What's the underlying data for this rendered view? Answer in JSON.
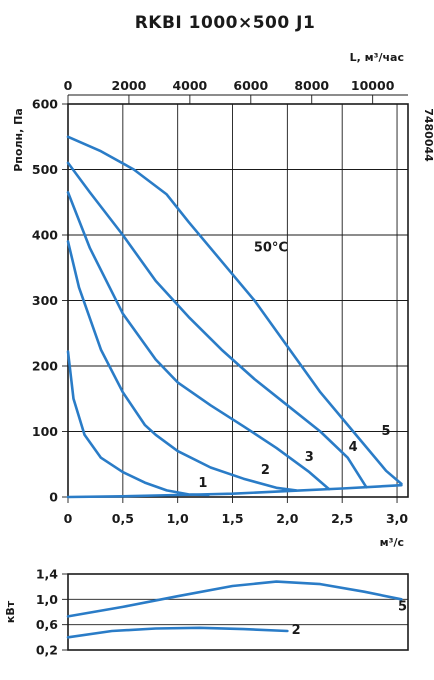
{
  "chart_data": [
    {
      "type": "line",
      "title": "RKBI 1000×500 J1",
      "code": "7480044",
      "ylabel": "Pполн, Па",
      "xlabel_bottom": "м³/с",
      "xlabel_top": "L, м³/час",
      "xlim": [
        0,
        3.1
      ],
      "ylim": [
        0,
        600
      ],
      "x_ticks": [
        0,
        0.5,
        1.0,
        1.5,
        2.0,
        2.5,
        3.0
      ],
      "x_tick_labels": [
        "0",
        "0,5",
        "1,0",
        "1,5",
        "2,0",
        "2,5",
        "3,0"
      ],
      "y_ticks": [
        0,
        100,
        200,
        300,
        400,
        500,
        600
      ],
      "y_tick_labels": [
        "0",
        "100",
        "200",
        "300",
        "400",
        "500",
        "600"
      ],
      "top_ticks": [
        0,
        2000,
        4000,
        6000,
        8000,
        10000
      ],
      "top_tick_labels": [
        "0",
        "2000",
        "4000",
        "6000",
        "8000",
        "10000"
      ],
      "annotation": "50°C",
      "series": [
        {
          "name": "1",
          "x": [
            0.0,
            0.05,
            0.15,
            0.3,
            0.5,
            0.7,
            0.9,
            1.1,
            1.28
          ],
          "y": [
            222,
            150,
            95,
            60,
            38,
            22,
            10,
            4,
            3
          ]
        },
        {
          "name": "2",
          "x": [
            0.0,
            0.1,
            0.3,
            0.5,
            0.7,
            0.8,
            1.0,
            1.3,
            1.6,
            1.9,
            2.08
          ],
          "y": [
            390,
            320,
            225,
            160,
            110,
            95,
            70,
            45,
            28,
            14,
            10
          ]
        },
        {
          "name": "3",
          "x": [
            0.0,
            0.2,
            0.5,
            0.8,
            1.0,
            1.3,
            1.6,
            1.9,
            2.2,
            2.38
          ],
          "y": [
            465,
            380,
            280,
            210,
            175,
            140,
            108,
            75,
            38,
            12
          ]
        },
        {
          "name": "4",
          "x": [
            0.0,
            0.2,
            0.5,
            0.8,
            1.1,
            1.4,
            1.7,
            2.0,
            2.3,
            2.55,
            2.72
          ],
          "y": [
            510,
            465,
            400,
            330,
            275,
            225,
            180,
            140,
            100,
            60,
            15
          ]
        },
        {
          "name": "5",
          "x": [
            0.0,
            0.3,
            0.6,
            0.9,
            1.1,
            1.4,
            1.7,
            2.0,
            2.3,
            2.6,
            2.9,
            3.04
          ],
          "y": [
            550,
            528,
            500,
            462,
            420,
            360,
            300,
            230,
            160,
            100,
            40,
            20
          ]
        },
        {
          "name": "system",
          "x": [
            0.0,
            0.5,
            1.0,
            1.5,
            2.0,
            2.5,
            3.04
          ],
          "y": [
            0,
            1,
            3,
            5,
            9,
            13,
            18
          ]
        }
      ],
      "curve_labels": [
        {
          "text": "1",
          "x": 1.23,
          "y": 15
        },
        {
          "text": "2",
          "x": 1.8,
          "y": 35
        },
        {
          "text": "3",
          "x": 2.2,
          "y": 55
        },
        {
          "text": "4",
          "x": 2.6,
          "y": 70
        },
        {
          "text": "5",
          "x": 2.9,
          "y": 95
        },
        {
          "text": "50°C",
          "x": 1.85,
          "y": 375
        }
      ]
    },
    {
      "type": "line",
      "ylabel": "кВт",
      "xlim": [
        0,
        3.1
      ],
      "ylim": [
        0.2,
        1.4
      ],
      "y_ticks": [
        0.2,
        0.6,
        1.0,
        1.4
      ],
      "y_tick_labels": [
        "0,2",
        "0,6",
        "1,0",
        "1,4"
      ],
      "series": [
        {
          "name": "5",
          "x": [
            0.0,
            0.5,
            1.0,
            1.5,
            1.9,
            2.3,
            2.7,
            3.04
          ],
          "y": [
            0.73,
            0.88,
            1.05,
            1.21,
            1.28,
            1.24,
            1.12,
            1.0
          ]
        },
        {
          "name": "2",
          "x": [
            0.0,
            0.4,
            0.8,
            1.2,
            1.6,
            2.0
          ],
          "y": [
            0.4,
            0.5,
            0.54,
            0.55,
            0.53,
            0.5
          ]
        }
      ],
      "curve_labels": [
        {
          "text": "5",
          "x": 3.05,
          "y": 0.82
        },
        {
          "text": "2",
          "x": 2.08,
          "y": 0.45
        }
      ]
    }
  ]
}
